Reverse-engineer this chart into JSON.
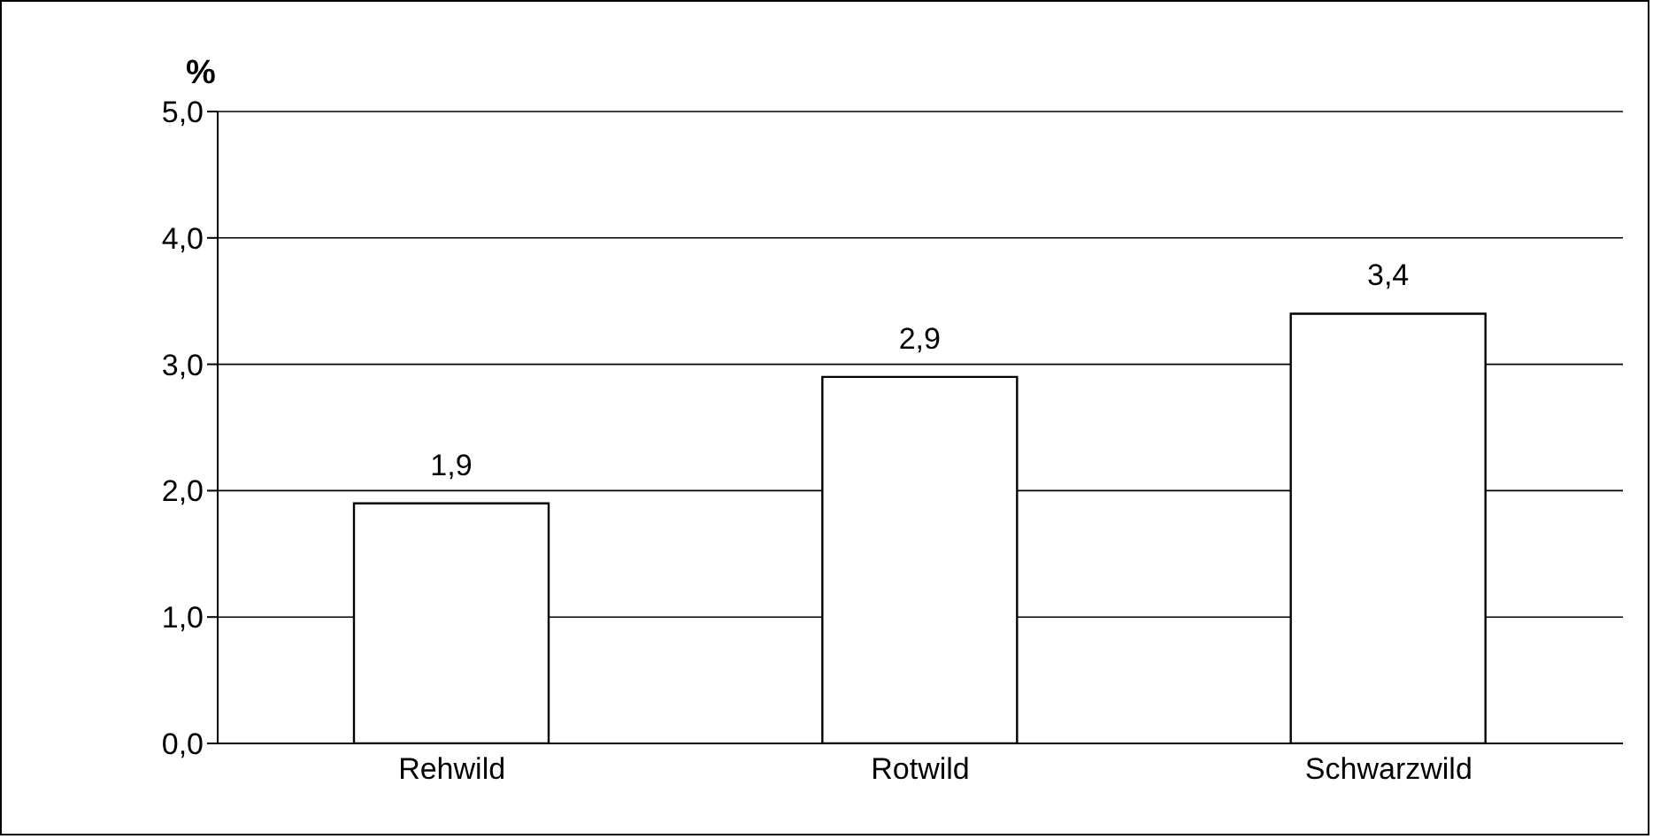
{
  "chart_data": {
    "type": "bar",
    "ylabel": "%",
    "categories": [
      "Rehwild",
      "Rotwild",
      "Schwarzwild"
    ],
    "values": [
      1.9,
      2.9,
      3.4
    ],
    "value_labels": [
      "1,9",
      "2,9",
      "3,4"
    ],
    "color": "#ffffff",
    "ylim": [
      0,
      5
    ],
    "yticks": [
      {
        "value": 0,
        "label": "0,0"
      },
      {
        "value": 1,
        "label": "1,0"
      },
      {
        "value": 2,
        "label": "2,0"
      },
      {
        "value": 3,
        "label": "3,0"
      },
      {
        "value": 4,
        "label": "4,0"
      },
      {
        "value": 5,
        "label": "5,0"
      }
    ],
    "grid": "y",
    "legend": false
  }
}
